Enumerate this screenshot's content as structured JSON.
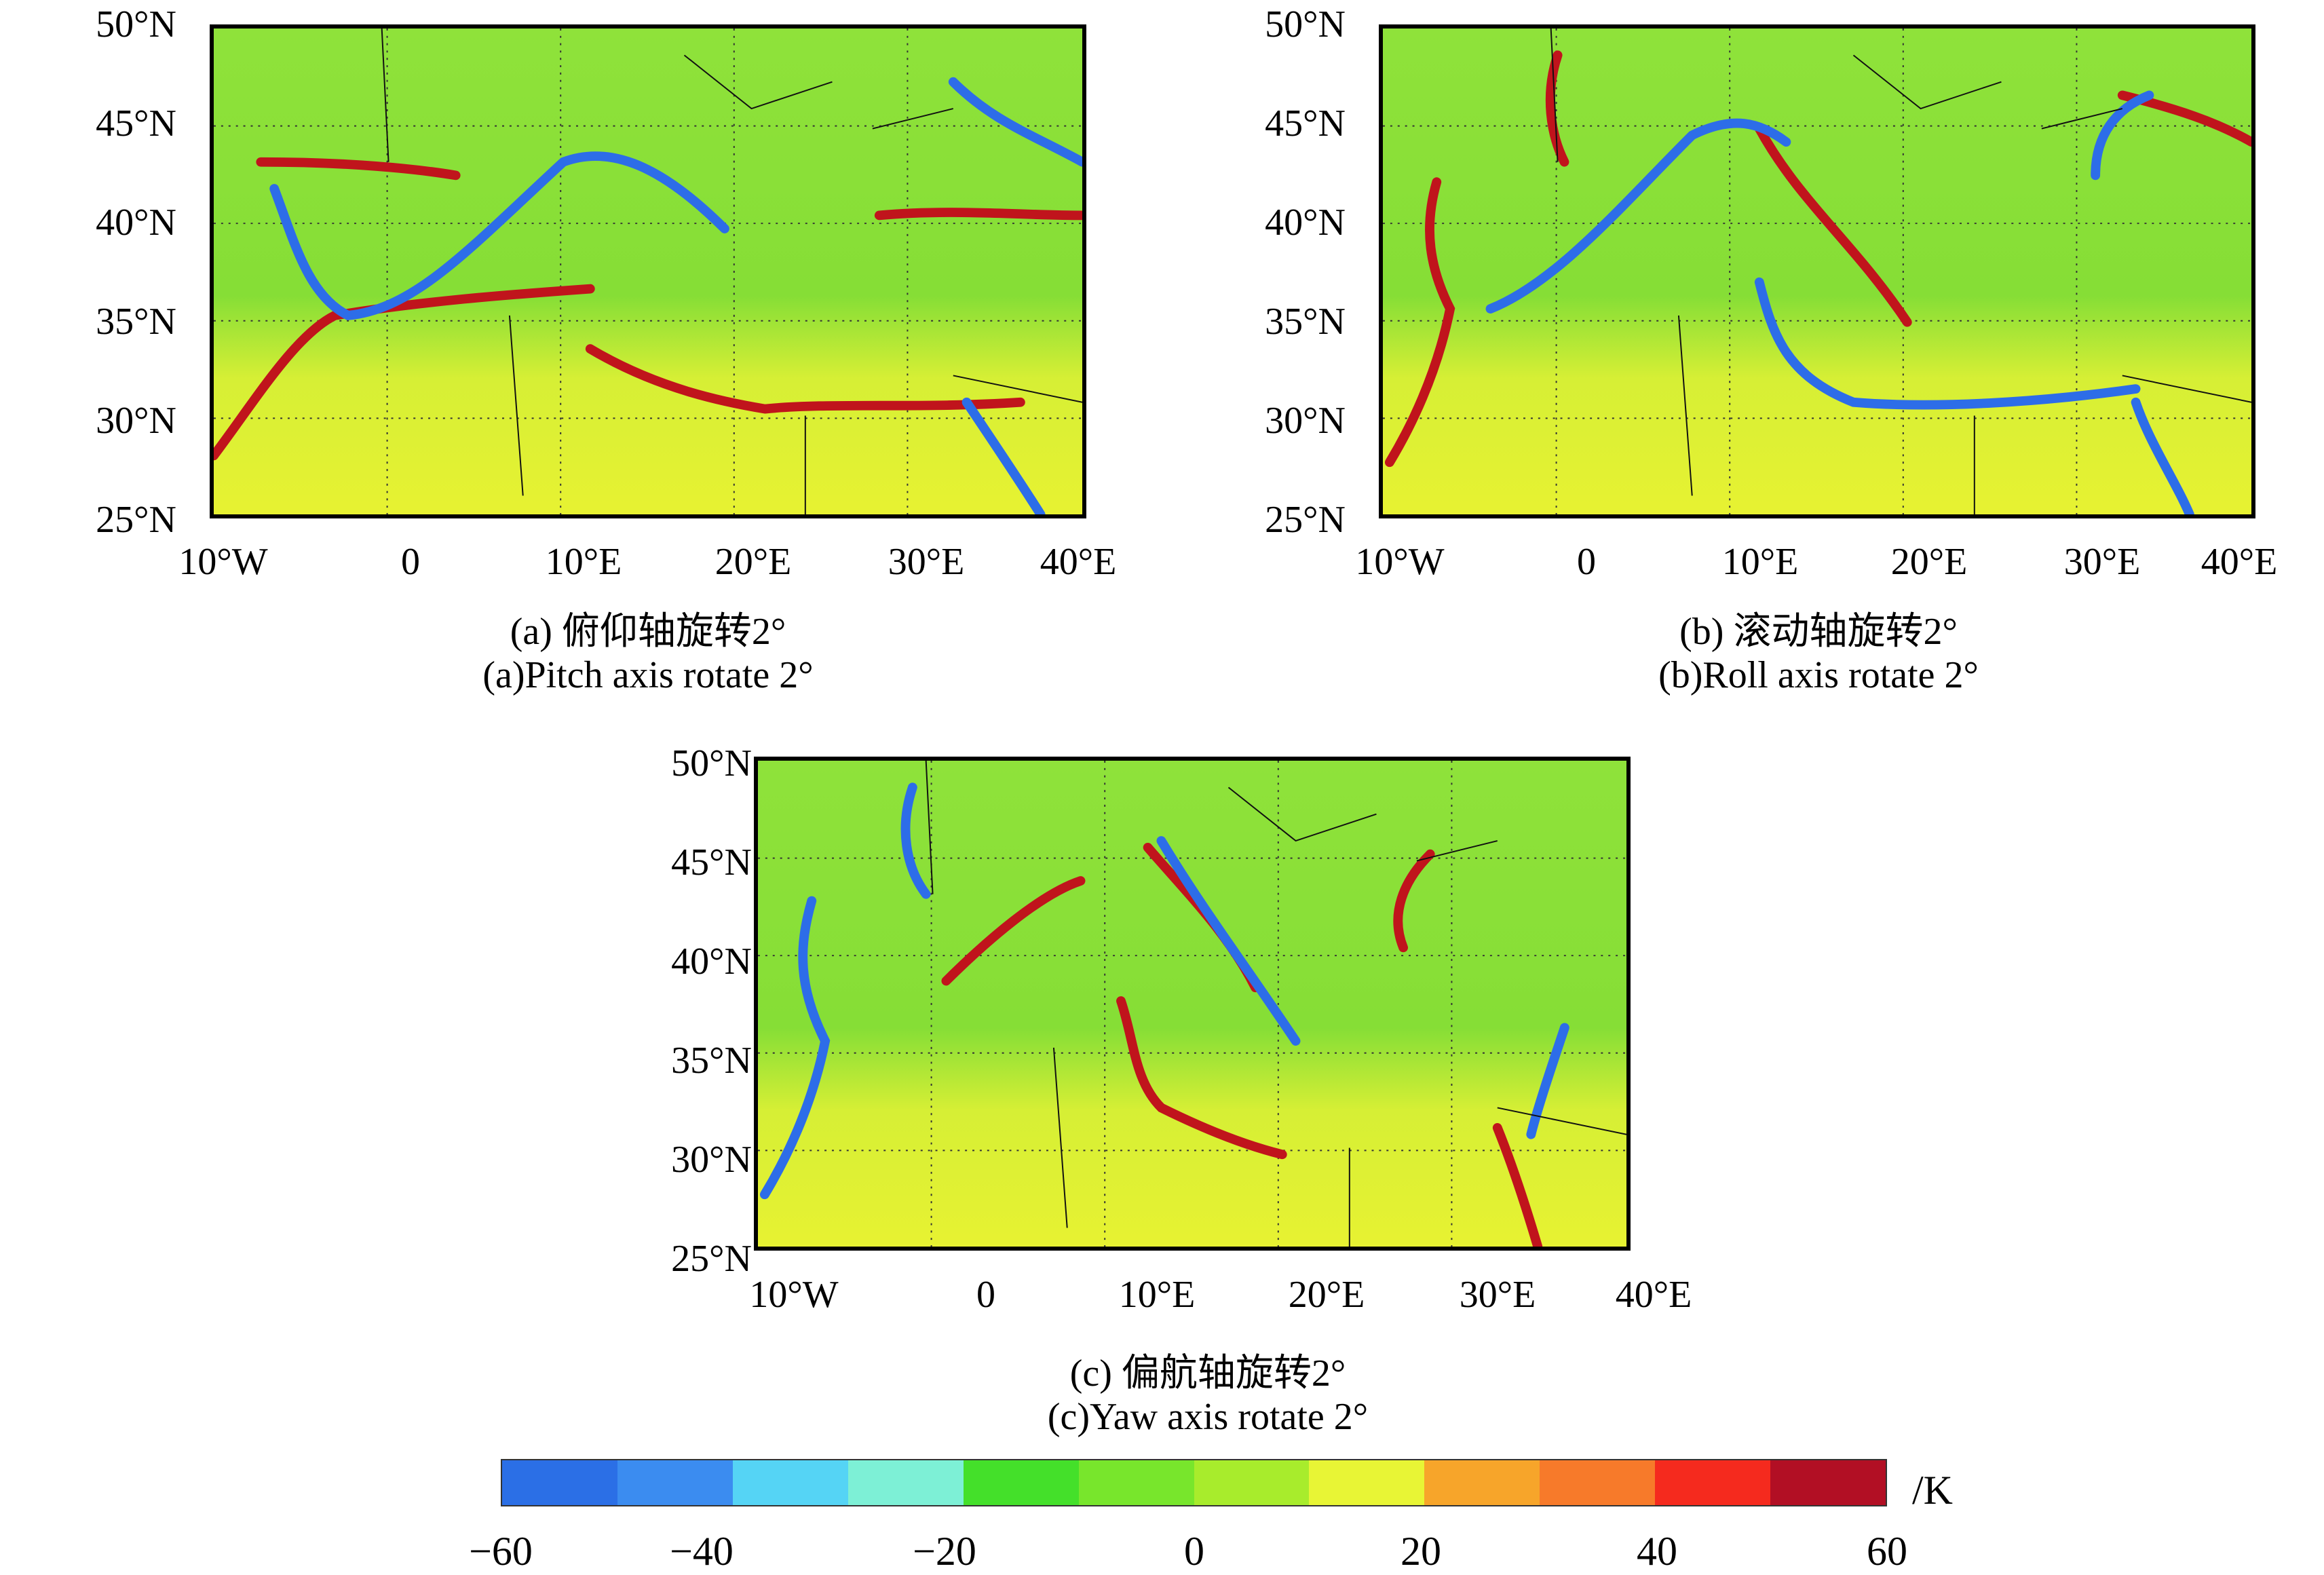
{
  "panels": [
    {
      "id": "a",
      "caption_cn": "(a) 俯仰轴旋转2°",
      "caption_en": "(a)Pitch axis rotate 2°"
    },
    {
      "id": "b",
      "caption_cn": "(b) 滚动轴旋转2°",
      "caption_en": "(b)Roll axis rotate 2°"
    },
    {
      "id": "c",
      "caption_cn": "(c) 偏航轴旋转2°",
      "caption_en": "(c)Yaw axis rotate 2°"
    }
  ],
  "axes": {
    "lat_ticks": [
      "50°N",
      "45°N",
      "40°N",
      "35°N",
      "30°N",
      "25°N"
    ],
    "lon_ticks": [
      "10°W",
      "0",
      "10°E",
      "20°E",
      "30°E",
      "40°E"
    ],
    "lat_range": [
      25,
      50
    ],
    "lon_range": [
      -10,
      40
    ]
  },
  "colorbar": {
    "unit": "/K",
    "ticks": [
      "−60",
      "−40",
      "−20",
      "0",
      "20",
      "40",
      "60"
    ],
    "range": [
      -60,
      60
    ],
    "colors": [
      "#2b6fe6",
      "#3b8cf0",
      "#55d4f5",
      "#7df0d6",
      "#44e02a",
      "#78e62c",
      "#a8ec2c",
      "#e8f535",
      "#f7a52a",
      "#f77a2a",
      "#f52a1e",
      "#b20f24"
    ]
  },
  "colors": {
    "ocean": "#86de36",
    "land_north": "#8fe23a",
    "land_south": "#e7f232",
    "hot": "#c0141c",
    "cold": "#2d6de8"
  }
}
